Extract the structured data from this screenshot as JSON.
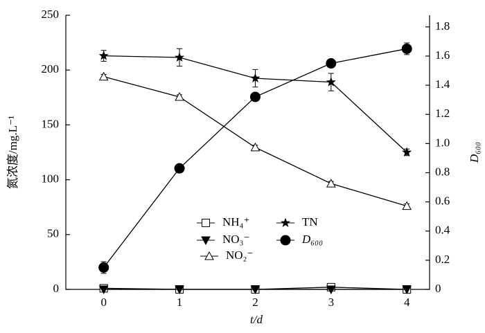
{
  "chart_data": {
    "type": "line",
    "x": [
      0,
      1,
      2,
      3,
      4
    ],
    "xlim": [
      -0.5,
      4.3
    ],
    "xticks": [
      0,
      1,
      2,
      3,
      4
    ],
    "ylim": [
      0,
      250
    ],
    "yticks": [
      0,
      50,
      100,
      150,
      200,
      250
    ],
    "y2lim": [
      0,
      1.88
    ],
    "y2ticks": [
      0,
      0.2,
      0.4,
      0.6,
      0.8,
      {
        "value": 1,
        "label": "1.0"
      },
      1.2,
      1.4,
      1.6,
      1.8
    ],
    "x_label": "t/d",
    "y_label": "氮浓度/mg.L⁻¹",
    "y2_label": "D₆₀₀",
    "series": [
      {
        "name": "NH₄⁺",
        "color": "#000000",
        "marker": "square",
        "values": [
          1,
          0,
          0,
          2,
          0
        ],
        "errors": [
          1,
          0.5,
          0.5,
          1.5,
          0.5
        ]
      },
      {
        "name": "NO₃⁻",
        "color": "#000000",
        "marker": "triangle-down",
        "values": [
          0,
          0,
          0,
          0,
          0
        ],
        "errors": [
          0,
          0,
          0,
          0,
          0
        ]
      },
      {
        "name": "NO₂⁻",
        "color": "#000000",
        "marker": "triangle-up",
        "values": [
          194,
          175.5,
          129.5,
          96.5,
          76
        ],
        "errors": [
          2,
          2,
          2,
          2,
          2
        ]
      },
      {
        "name": "TN",
        "color": "#000000",
        "marker": "star",
        "values": [
          213,
          211.5,
          192.5,
          189,
          125
        ],
        "errors": [
          5,
          8,
          8,
          8,
          3
        ]
      },
      {
        "name": "D₆₀₀",
        "color": "#000000",
        "marker": "circle",
        "axis": "y2",
        "values": [
          0.15,
          0.83,
          1.32,
          1.55,
          1.65
        ],
        "errors": [
          0.04,
          0.02,
          0.01,
          0.01,
          0.04
        ]
      }
    ]
  }
}
